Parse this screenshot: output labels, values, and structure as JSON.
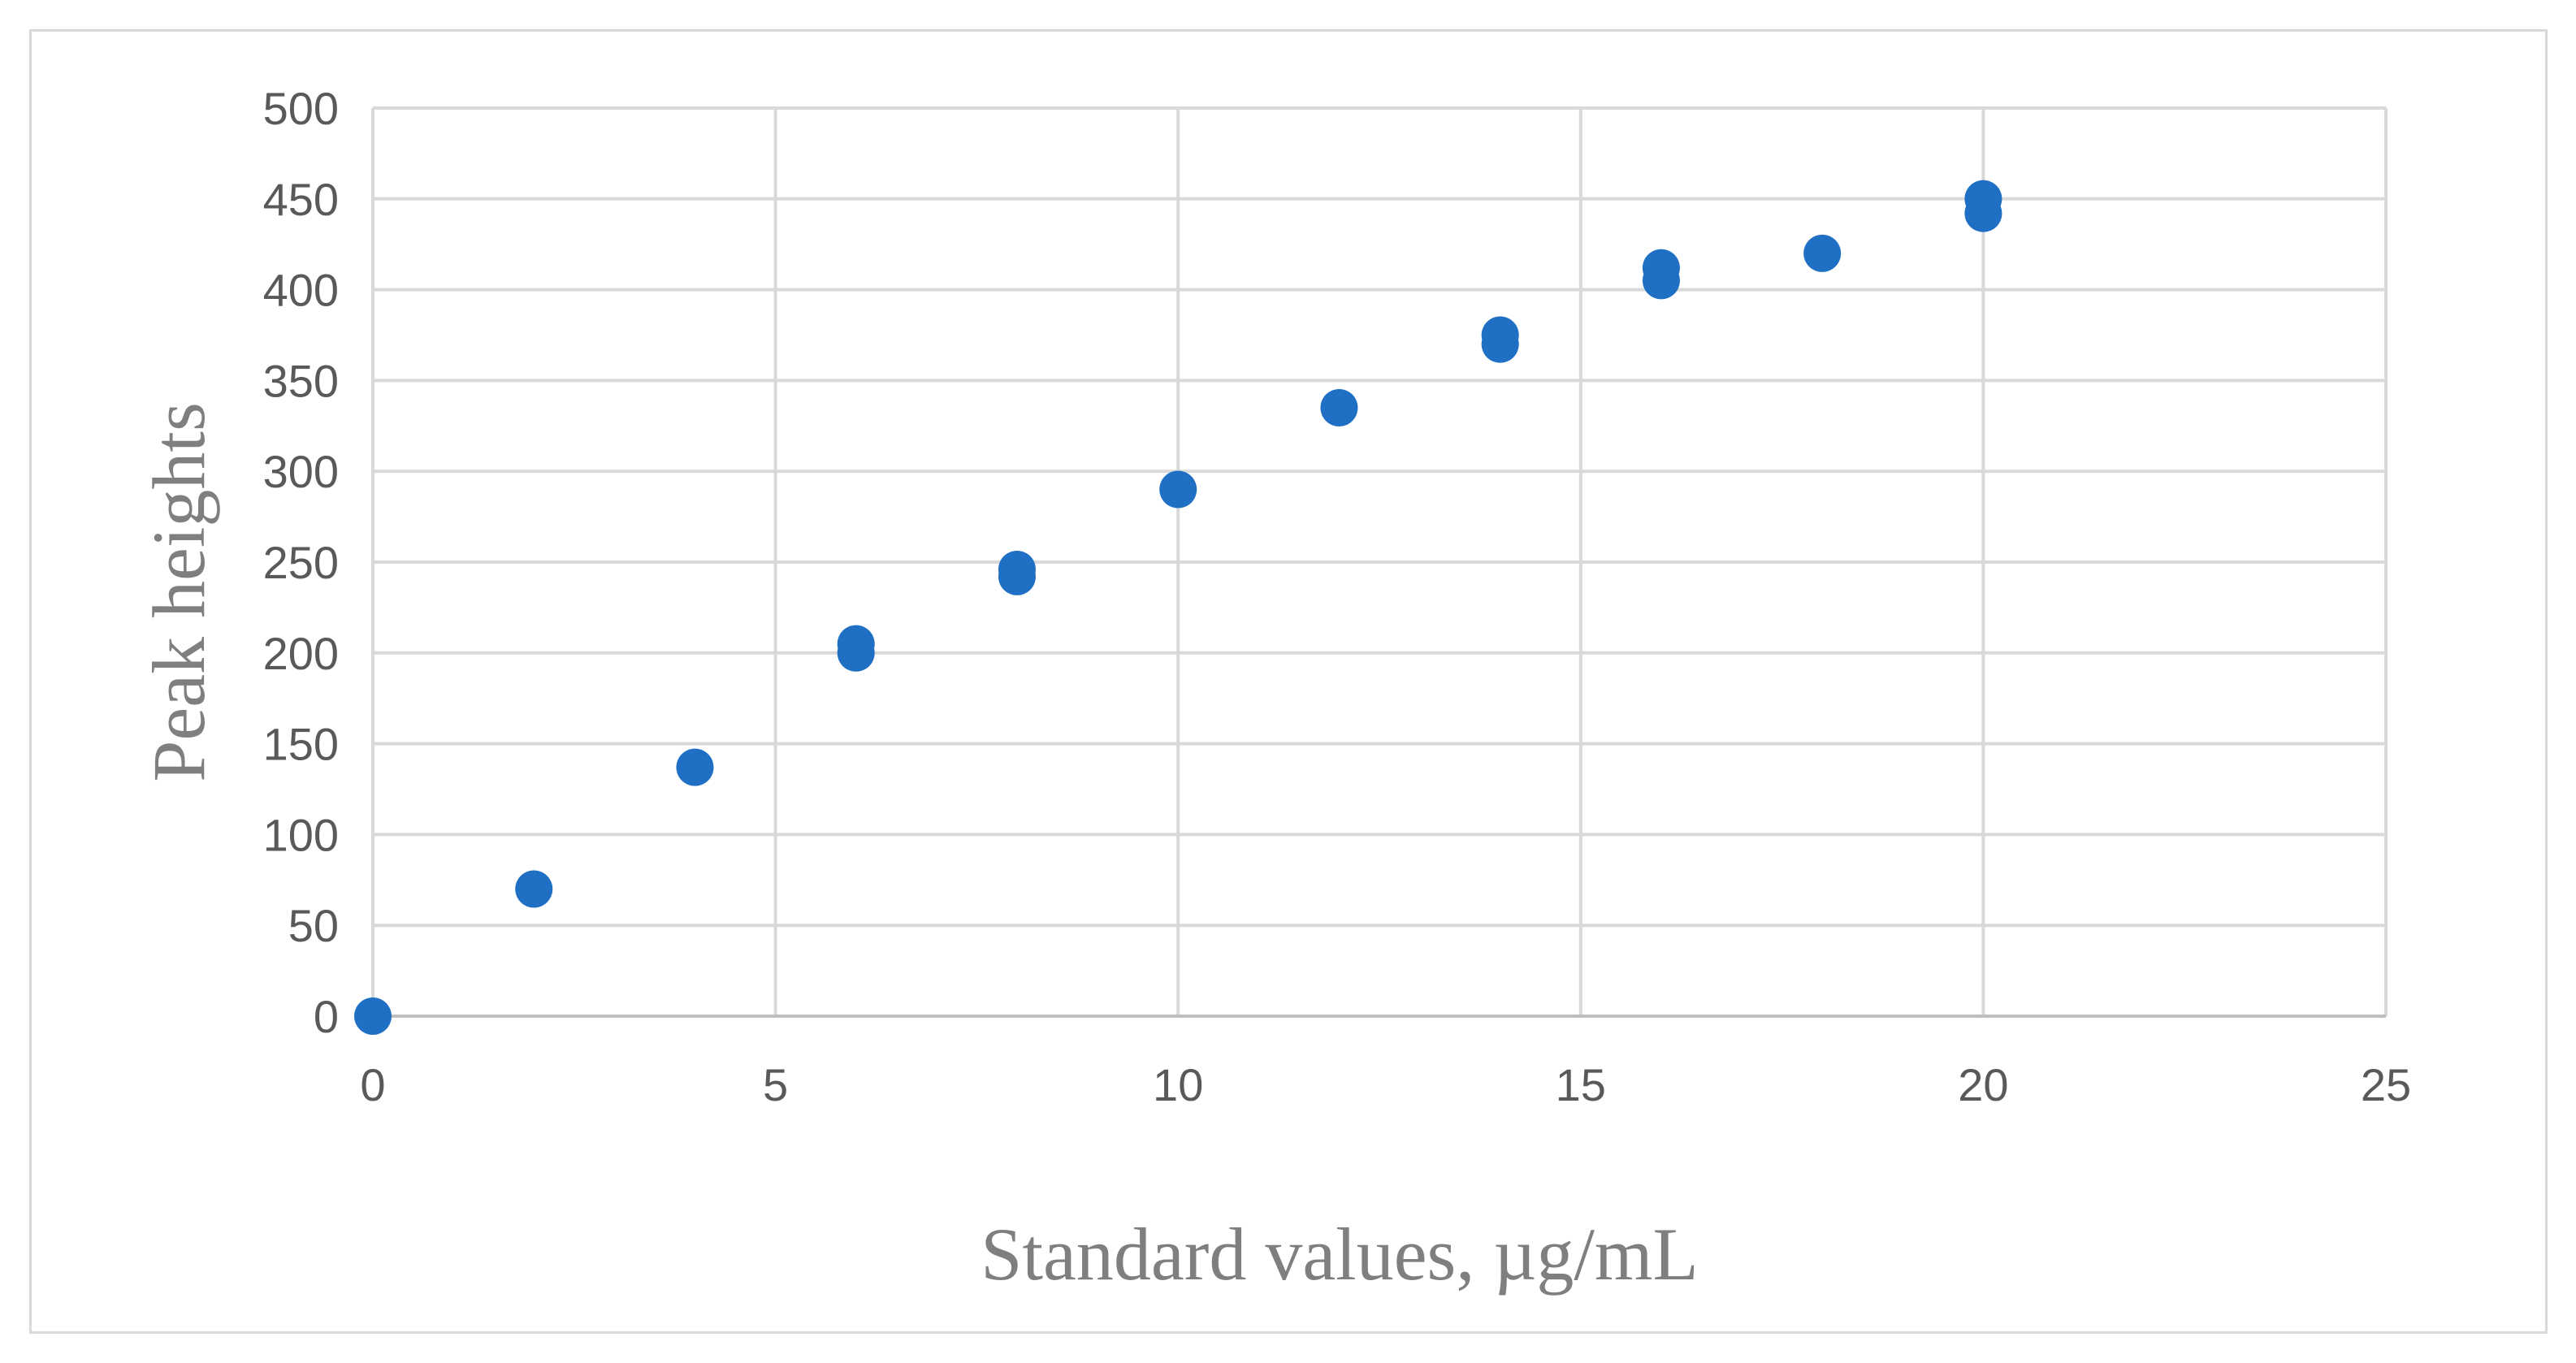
{
  "chart_data": {
    "type": "scatter",
    "title": "",
    "xlabel": "Standard values, µg/mL",
    "ylabel": "Peak heights",
    "xlim": [
      0,
      25
    ],
    "ylim": [
      0,
      500
    ],
    "x_ticks": [
      "0",
      "5",
      "10",
      "15",
      "20",
      "25"
    ],
    "y_ticks": [
      "0",
      "50",
      "100",
      "150",
      "200",
      "250",
      "300",
      "350",
      "400",
      "450",
      "500"
    ],
    "grid": true,
    "legend": "none",
    "marker_color": "#1f6fc5",
    "series": [
      {
        "points": [
          {
            "x": 0,
            "y": 0
          },
          {
            "x": 2,
            "y": 70
          },
          {
            "x": 4,
            "y": 137
          },
          {
            "x": 6,
            "y": 200
          },
          {
            "x": 6,
            "y": 205
          },
          {
            "x": 8,
            "y": 242
          },
          {
            "x": 8,
            "y": 246
          },
          {
            "x": 10,
            "y": 290
          },
          {
            "x": 12,
            "y": 335
          },
          {
            "x": 14,
            "y": 370
          },
          {
            "x": 14,
            "y": 375
          },
          {
            "x": 16,
            "y": 405
          },
          {
            "x": 16,
            "y": 412
          },
          {
            "x": 18,
            "y": 420
          },
          {
            "x": 20,
            "y": 442
          },
          {
            "x": 20,
            "y": 450
          }
        ]
      }
    ]
  }
}
